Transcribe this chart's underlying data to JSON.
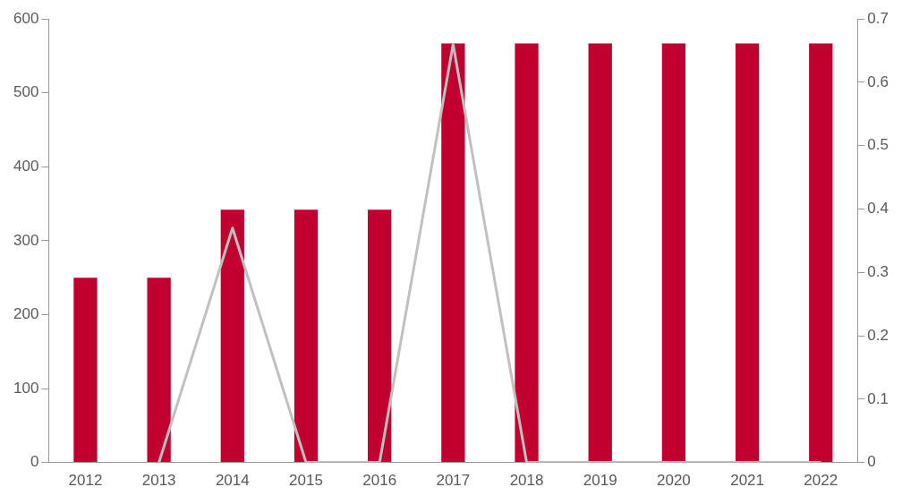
{
  "chart_data": {
    "type": "bar",
    "categories": [
      "2012",
      "2013",
      "2014",
      "2015",
      "2016",
      "2017",
      "2018",
      "2019",
      "2020",
      "2021",
      "2022"
    ],
    "series": [
      {
        "color": "#c0002f",
        "values": [
          250,
          250,
          342,
          342,
          342,
          567,
          567,
          567,
          567,
          567,
          567
        ]
      },
      {
        "type": "line",
        "axis": "y2",
        "color": "#c0c0c0",
        "values": [
          null,
          0,
          0.37,
          0,
          0,
          0.66,
          0,
          0,
          0,
          0,
          0
        ]
      }
    ],
    "ylim": [
      0,
      600
    ],
    "yticks": [
      0,
      100,
      200,
      300,
      400,
      500,
      600
    ],
    "y2lim": [
      0,
      0.7
    ],
    "y2ticks": [
      0,
      0.1,
      0.2,
      0.3,
      0.4,
      0.5,
      0.6,
      0.7
    ],
    "grid": false,
    "legend": false
  }
}
